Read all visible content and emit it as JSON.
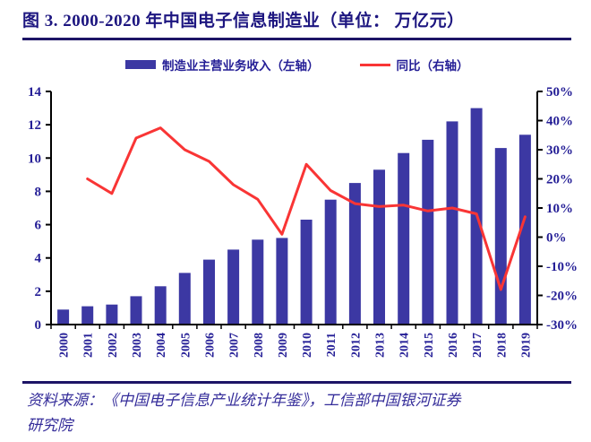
{
  "title": "图 3. 2000-2020 年中国电子信息制造业（单位： 万亿元）",
  "legend": [
    {
      "label": "制造业主营业务收入（左轴）",
      "type": "bar"
    },
    {
      "label": "同比（右轴）",
      "type": "line"
    }
  ],
  "source": {
    "line1": "资料来源：《中国电子信息产业统计年鉴》，工信部中国银河证券",
    "line2": "研究院"
  },
  "colors": {
    "bar": "#3c38a3",
    "line": "#f93535",
    "navy_text": "#241e96",
    "rule": "#1d1466",
    "axis": "#000000"
  },
  "chart_data": {
    "type": "bar",
    "title": "2000-2020 年中国电子信息制造业",
    "unit": "万亿元",
    "categories": [
      "2000",
      "2001",
      "2002",
      "2003",
      "2004",
      "2005",
      "2006",
      "2007",
      "2008",
      "2009",
      "2010",
      "2011",
      "2012",
      "2013",
      "2014",
      "2015",
      "2016",
      "2017",
      "2018",
      "2019"
    ],
    "series": [
      {
        "name": "制造业主营业务收入（左轴）",
        "type": "bar",
        "axis": "left",
        "values": [
          0.9,
          1.1,
          1.2,
          1.7,
          2.3,
          3.1,
          3.9,
          4.5,
          5.1,
          5.2,
          6.3,
          7.5,
          8.5,
          9.3,
          10.3,
          11.1,
          12.2,
          13.0,
          10.6,
          11.4
        ]
      },
      {
        "name": "同比（右轴）",
        "type": "line",
        "axis": "right",
        "values": [
          null,
          20,
          15,
          34,
          37.5,
          30,
          26,
          18,
          13,
          1,
          25,
          16,
          11.5,
          10.5,
          11,
          9,
          10,
          8,
          -18,
          7
        ]
      }
    ],
    "left_axis": {
      "min": 0,
      "max": 14,
      "step": 2,
      "ticks": [
        "0",
        "2",
        "4",
        "6",
        "8",
        "10",
        "12",
        "14"
      ]
    },
    "right_axis": {
      "min": -30,
      "max": 50,
      "step": 10,
      "ticks": [
        "-30%",
        "-20%",
        "-10%",
        "0%",
        "10%",
        "20%",
        "30%",
        "40%",
        "50%"
      ]
    },
    "grid": false,
    "legend_position": "top",
    "x_label_rotation_reads": "bottom-to-top"
  }
}
